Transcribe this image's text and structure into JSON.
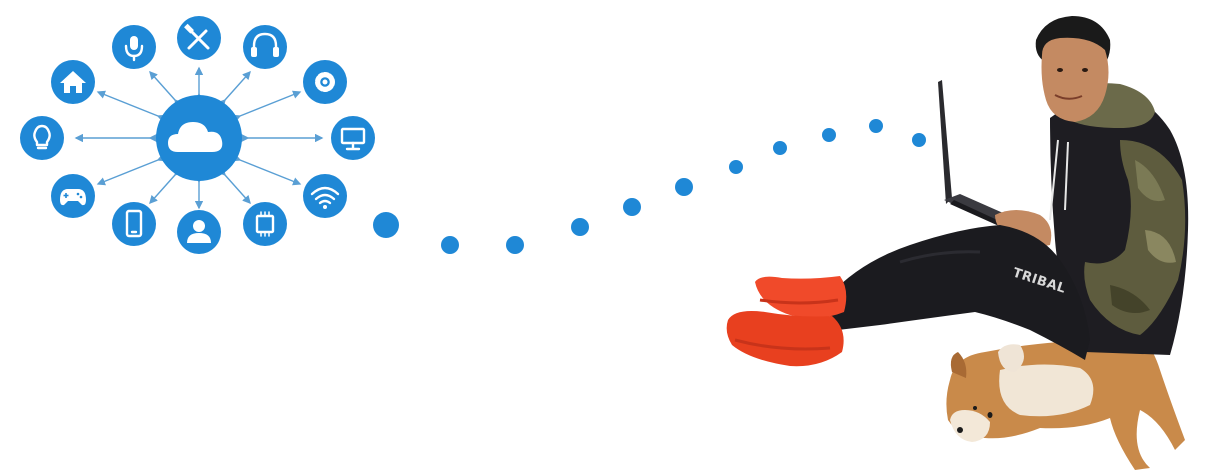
{
  "colors": {
    "accent": "#1f88d6",
    "arrow": "#5a9fd4",
    "background": "#ffffff",
    "shoes": "#f04a2a",
    "pants": "#1b1b1f",
    "hoodie_camo": "#6b6a4a"
  },
  "cloud_hub": {
    "center_icon": "cloud-icon",
    "satellite_icons": [
      "microphone-icon",
      "tools-icon",
      "headphones-icon",
      "gear-icon",
      "monitor-icon",
      "wifi-icon",
      "chip-icon",
      "user-icon",
      "smartphone-icon",
      "gamepad-icon",
      "lightbulb-icon",
      "home-icon"
    ]
  },
  "illustration": {
    "pants_brand_text": "TRIBAL"
  }
}
